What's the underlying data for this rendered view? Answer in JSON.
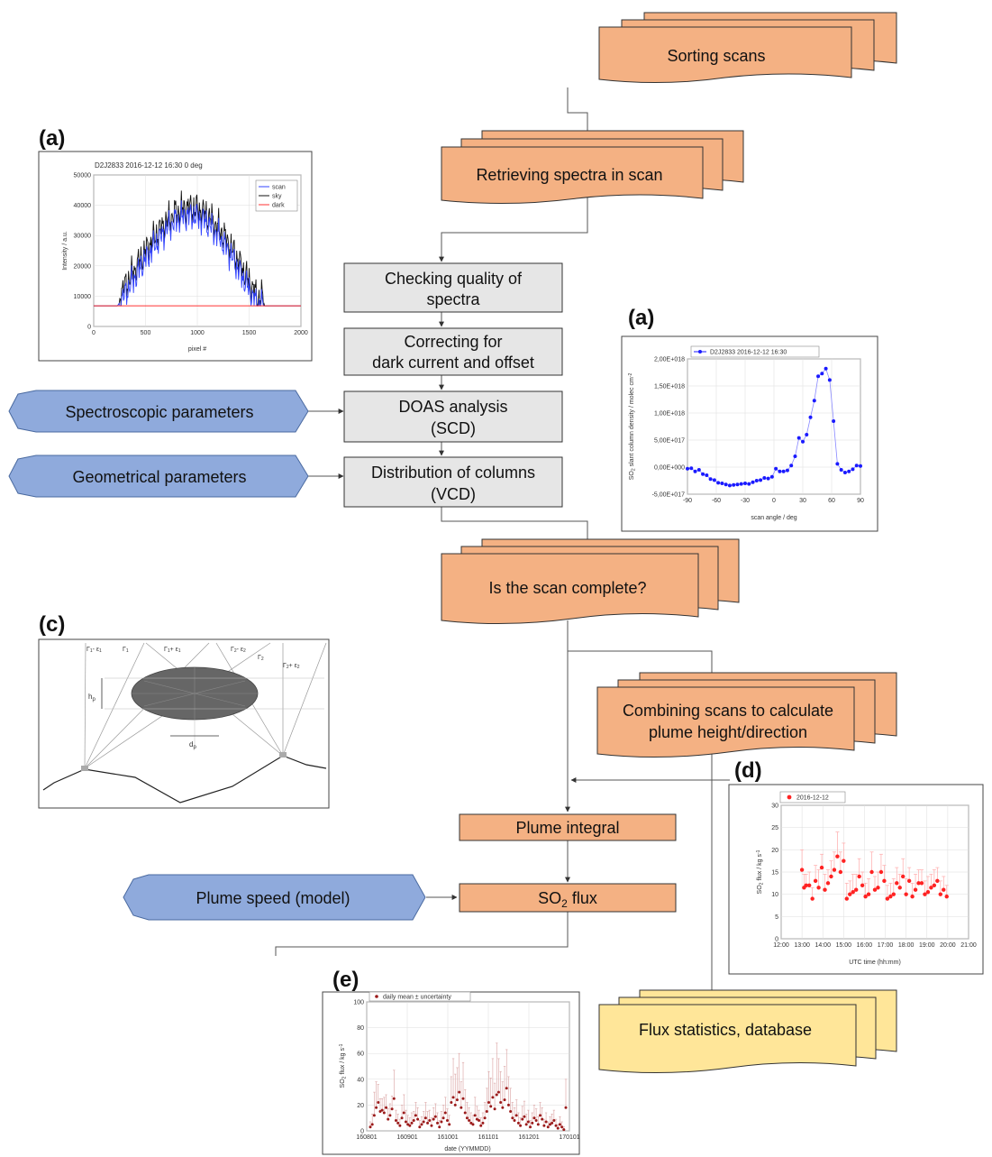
{
  "flowchart": {
    "sorting_scans": "Sorting scans",
    "retrieving_spectra": "Retrieving spectra in scan",
    "checking_quality": [
      "Checking quality of",
      "spectra"
    ],
    "correcting": [
      "Correcting for",
      "dark current and offset"
    ],
    "doas_analysis": [
      "DOAS analysis",
      "(SCD)"
    ],
    "distribution": [
      "Distribution of columns",
      "(VCD)"
    ],
    "scan_complete": "Is the scan complete?",
    "combining_scans": [
      "Combining scans to calculate",
      "plume height/direction"
    ],
    "plume_integral": "Plume integral",
    "so2_flux_prefix": "SO",
    "so2_flux_sub": "2",
    "so2_flux_suffix": " flux",
    "flux_statistics": "Flux statistics, database"
  },
  "inputs": {
    "spectroscopic": "Spectroscopic parameters",
    "geometrical": "Geometrical parameters",
    "plume_speed": "Plume speed (model)"
  },
  "panel_tags": {
    "a1": "(a)",
    "a2": "(a)",
    "c": "(c)",
    "d": "(d)",
    "e": "(e)"
  },
  "colors": {
    "orange": "#f4b183",
    "grey_box": "#e6e6e6",
    "blue_hex": "#8faadc",
    "yellow": "#ffe699"
  },
  "chart_data": [
    {
      "type": "line",
      "title": "D2J2833 2016-12-12 16:30 0 deg",
      "xlabel": "pixel #",
      "ylabel": "Intensity / a.u.",
      "xlim": [
        0,
        2000
      ],
      "ylim": [
        0,
        50000
      ],
      "xticks": [
        "0",
        "500",
        "1000",
        "1500",
        "2000"
      ],
      "yticks": [
        "0",
        "10000",
        "20000",
        "30000",
        "40000",
        "50000"
      ],
      "legend": [
        "scan",
        "sky",
        "dark"
      ],
      "legend_position": "top-right",
      "series_colors": [
        "#3344ff",
        "#111111",
        "#ff3333"
      ]
    },
    {
      "type": "scatter",
      "legend": "D2J2833 2016-12-12 16:30",
      "xlabel": "scan angle / deg",
      "ylabel_prefix": "SO",
      "ylabel_sub": "2",
      "ylabel_suffix": " slant column density / molec cm",
      "ylabel_sup": "-2",
      "xlim": [
        -90,
        90
      ],
      "ylim": [
        -5e+17,
        2e+18
      ],
      "xticks": [
        "-90",
        "-60",
        "-30",
        "0",
        "30",
        "60",
        "90"
      ],
      "yticks": [
        "-5,00E+017",
        "0,00E+000",
        "5,00E+017",
        "1,00E+018",
        "1,50E+018",
        "2,00E+018"
      ],
      "x": [
        -90,
        -86,
        -82,
        -78,
        -74,
        -70,
        -66,
        -62,
        -58,
        -54,
        -50,
        -46,
        -42,
        -38,
        -34,
        -30,
        -26,
        -22,
        -18,
        -14,
        -10,
        -6,
        -2,
        2,
        6,
        10,
        14,
        18,
        22,
        26,
        30,
        34,
        38,
        42,
        46,
        50,
        54,
        58,
        62,
        66,
        70,
        74,
        78,
        82,
        86,
        90
      ],
      "y": [
        -3e+16,
        -2e+16,
        -8e+16,
        -5e+16,
        -1.3e+17,
        -1.5e+17,
        -2.2e+17,
        -2.4e+17,
        -2.9e+17,
        -3e+17,
        -3.2e+17,
        -3.4e+17,
        -3.3e+17,
        -3.2e+17,
        -3.1e+17,
        -3e+17,
        -3.1e+17,
        -2.8e+17,
        -2.5e+17,
        -2.4e+17,
        -2e+17,
        -2.1e+17,
        -1.8e+17,
        -3e+16,
        -8e+16,
        -8e+16,
        -6e+16,
        3e+16,
        2e+17,
        5.4e+17,
        4.7e+17,
        6e+17,
        9.2e+17,
        1.23e+18,
        1.68e+18,
        1.73e+18,
        1.82e+18,
        1.61e+18,
        8.5e+17,
        6e+16,
        -5e+16,
        -1e+17,
        -8e+16,
        -4e+16,
        3e+16,
        2e+16
      ],
      "color": "#1a1aff"
    },
    {
      "type": "scatter",
      "legend": "2016-12-12",
      "xlabel": "UTC time (hh:mm)",
      "ylabel_prefix": "SO",
      "ylabel_sub": "2",
      "ylabel_suffix": " flux / kg s",
      "ylabel_sup": "-1",
      "xlim": [
        12,
        21
      ],
      "ylim": [
        0,
        30
      ],
      "xticks": [
        "12:00",
        "13:00",
        "14:00",
        "15:00",
        "16:00",
        "17:00",
        "18:00",
        "19:00",
        "20:00",
        "21:00"
      ],
      "yticks": [
        "0",
        "5",
        "10",
        "15",
        "20",
        "25",
        "30"
      ],
      "x": [
        13.0,
        13.1,
        13.2,
        13.35,
        13.5,
        13.65,
        13.8,
        13.95,
        14.1,
        14.25,
        14.4,
        14.55,
        14.7,
        14.85,
        15.0,
        15.15,
        15.3,
        15.45,
        15.6,
        15.75,
        15.9,
        16.05,
        16.2,
        16.35,
        16.5,
        16.65,
        16.8,
        16.95,
        17.1,
        17.25,
        17.4,
        17.55,
        17.7,
        17.85,
        18.0,
        18.15,
        18.3,
        18.45,
        18.6,
        18.75,
        18.9,
        19.05,
        19.2,
        19.35,
        19.5,
        19.65,
        19.8,
        19.95
      ],
      "y": [
        15.5,
        11.5,
        12.0,
        12.0,
        9.0,
        13.0,
        11.5,
        16.0,
        11.0,
        12.5,
        14.0,
        15.5,
        18.5,
        15.0,
        17.5,
        9.0,
        10.0,
        10.5,
        11.0,
        14.0,
        12.0,
        9.5,
        10.0,
        15.0,
        11.0,
        11.5,
        15.0,
        13.0,
        9.0,
        9.5,
        10.0,
        12.5,
        11.5,
        14.0,
        10.0,
        13.0,
        9.5,
        11.0,
        12.5,
        12.5,
        10.0,
        10.5,
        11.5,
        12.0,
        13.0,
        10.0,
        11.0,
        9.5
      ],
      "err": [
        4.5,
        3.0,
        2.5,
        3.0,
        2.5,
        3.5,
        4.0,
        3.0,
        3.5,
        3.0,
        3.5,
        4.0,
        5.5,
        4.5,
        4.0,
        3.5,
        3.0,
        4.0,
        3.5,
        4.0,
        3.0,
        3.0,
        3.5,
        4.5,
        3.0,
        3.5,
        4.0,
        3.5,
        3.0,
        3.0,
        3.5,
        3.5,
        3.0,
        4.0,
        3.5,
        3.0,
        3.0,
        3.5,
        3.0,
        3.0,
        3.0,
        3.5,
        3.0,
        3.5,
        3.0,
        3.0,
        3.0,
        2.5
      ],
      "color": "#ff2222"
    },
    {
      "type": "scatter",
      "legend": "daily mean ± uncertainty",
      "xlabel": "date (YYMMDD)",
      "ylabel_prefix": "SO",
      "ylabel_sub": "2",
      "ylabel_suffix": " flux / kg s",
      "ylabel_sup": "-1",
      "xlim": [
        0,
        12
      ],
      "ylim": [
        0,
        100
      ],
      "xticks": [
        "160801",
        "160901",
        "161001",
        "161101",
        "161201",
        "170101"
      ],
      "yticks": [
        "0",
        "20",
        "40",
        "60",
        "80",
        "100"
      ],
      "y": [
        3,
        5,
        12,
        18,
        22,
        15,
        16,
        14,
        18,
        9,
        12,
        17,
        25,
        8,
        6,
        4,
        10,
        14,
        7,
        5,
        4,
        6,
        8,
        12,
        9,
        3,
        5,
        7,
        10,
        6,
        8,
        4,
        9,
        11,
        6,
        3,
        7,
        10,
        14,
        8,
        5,
        22,
        26,
        20,
        24,
        30,
        18,
        25,
        14,
        10,
        8,
        6,
        5,
        12,
        9,
        8,
        4,
        6,
        10,
        15,
        22,
        19,
        26,
        17,
        28,
        30,
        22,
        18,
        24,
        33,
        20,
        15,
        10,
        8,
        12,
        6,
        4,
        9,
        11,
        5,
        7,
        3,
        6,
        10,
        8,
        5,
        12,
        9,
        4,
        7,
        3,
        5,
        6,
        8,
        4,
        2,
        5,
        3,
        1,
        18
      ],
      "err": [
        4,
        8,
        18,
        20,
        14,
        10,
        9,
        12,
        10,
        8,
        9,
        10,
        22,
        8,
        7,
        5,
        10,
        14,
        9,
        7,
        6,
        8,
        7,
        10,
        9,
        5,
        6,
        8,
        12,
        9,
        8,
        6,
        9,
        10,
        8,
        5,
        8,
        10,
        12,
        9,
        7,
        20,
        30,
        24,
        25,
        30,
        20,
        28,
        18,
        12,
        10,
        8,
        7,
        14,
        10,
        8,
        6,
        8,
        12,
        18,
        24,
        22,
        30,
        20,
        40,
        26,
        24,
        20,
        26,
        30,
        22,
        18,
        12,
        10,
        12,
        8,
        6,
        10,
        12,
        8,
        9,
        5,
        8,
        10,
        9,
        6,
        10,
        9,
        5,
        7,
        4,
        6,
        7,
        8,
        5,
        3,
        6,
        4,
        2,
        22
      ],
      "color": "#9b1b1b"
    }
  ]
}
